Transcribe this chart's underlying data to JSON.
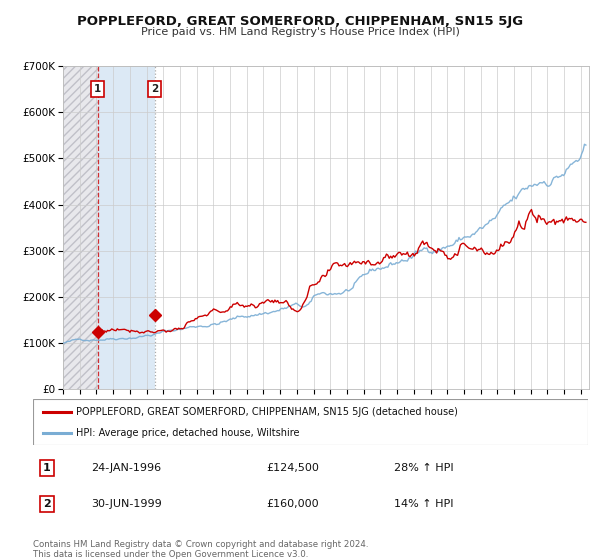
{
  "title": "POPPLEFORD, GREAT SOMERFORD, CHIPPENHAM, SN15 5JG",
  "subtitle": "Price paid vs. HM Land Registry's House Price Index (HPI)",
  "ylim": [
    0,
    700000
  ],
  "xlim_start": 1994.0,
  "xlim_end": 2025.5,
  "yticks": [
    0,
    100000,
    200000,
    300000,
    400000,
    500000,
    600000,
    700000
  ],
  "ytick_labels": [
    "£0",
    "£100K",
    "£200K",
    "£300K",
    "£400K",
    "£500K",
    "£600K",
    "£700K"
  ],
  "xticks": [
    1994,
    1995,
    1996,
    1997,
    1998,
    1999,
    2000,
    2001,
    2002,
    2003,
    2004,
    2005,
    2006,
    2007,
    2008,
    2009,
    2010,
    2011,
    2012,
    2013,
    2014,
    2015,
    2016,
    2017,
    2018,
    2019,
    2020,
    2021,
    2022,
    2023,
    2024,
    2025
  ],
  "sale1_x": 1996.07,
  "sale1_y": 124500,
  "sale2_x": 1999.5,
  "sale2_y": 160000,
  "red_line_color": "#cc0000",
  "blue_line_color": "#7aadd4",
  "shaded_region_color": "#dce9f5",
  "hatch_color": "#d0d0d8",
  "grid_color": "#cccccc",
  "background_color": "#ffffff",
  "legend1_text": "POPPLEFORD, GREAT SOMERFORD, CHIPPENHAM, SN15 5JG (detached house)",
  "legend2_text": "HPI: Average price, detached house, Wiltshire",
  "annotation1_date": "24-JAN-1996",
  "annotation1_price": "£124,500",
  "annotation1_hpi": "28% ↑ HPI",
  "annotation2_date": "30-JUN-1999",
  "annotation2_price": "£160,000",
  "annotation2_hpi": "14% ↑ HPI",
  "footer": "Contains HM Land Registry data © Crown copyright and database right 2024.\nThis data is licensed under the Open Government Licence v3.0."
}
